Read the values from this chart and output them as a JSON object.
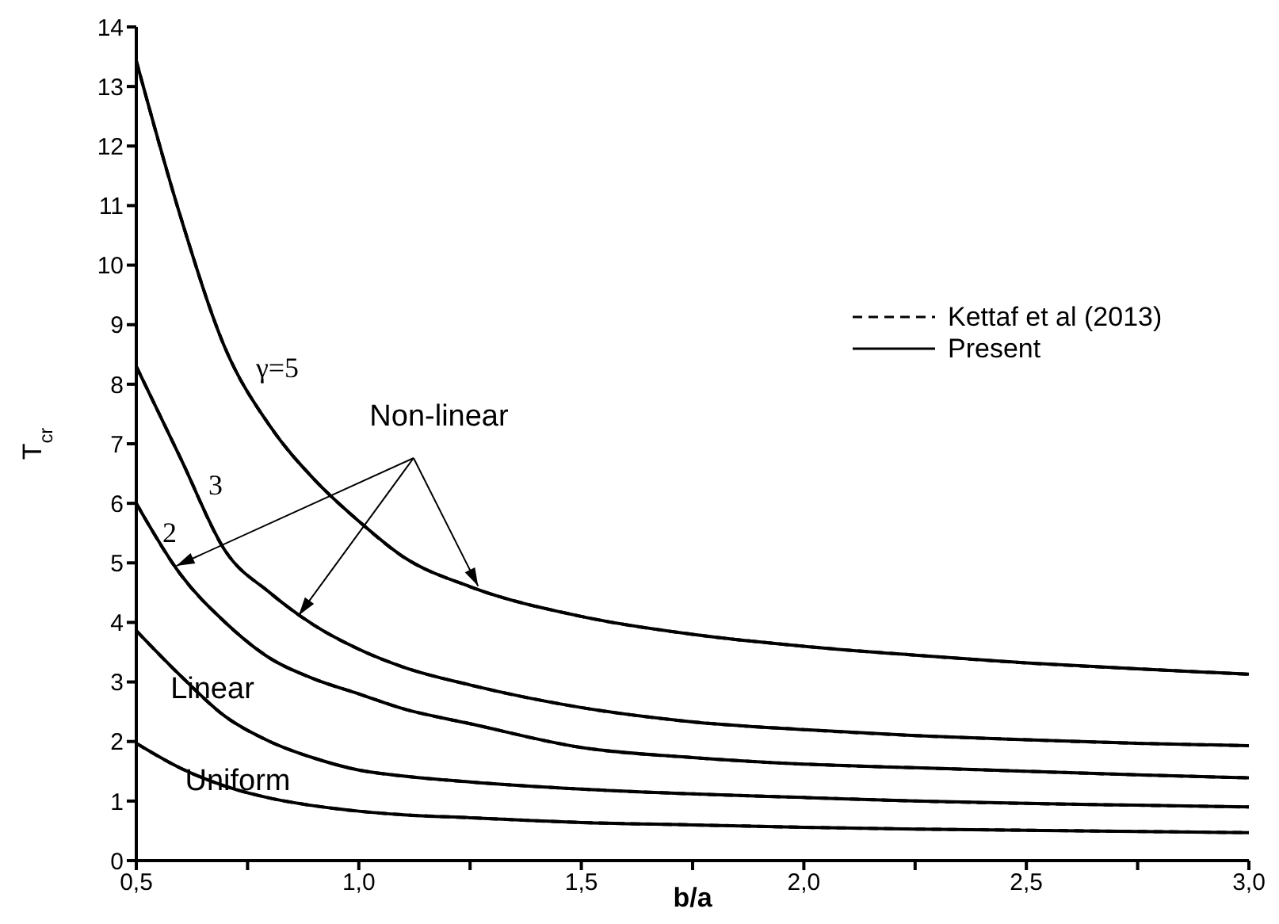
{
  "chart_data": {
    "type": "line",
    "xlabel": "b/a",
    "ylabel": "T$_{cr}$",
    "x": [
      0.5,
      0.6,
      0.7,
      0.8,
      0.9,
      1.0,
      1.1,
      1.25,
      1.5,
      1.75,
      2.0,
      2.25,
      2.5,
      2.75,
      3.0
    ],
    "series": [
      {
        "name": "Kettaf et al (2013)",
        "color": "#000000",
        "line_style": "dashed",
        "values": [
          13.43,
          10.8,
          8.6,
          7.3,
          6.4,
          5.7,
          5.1,
          4.6,
          4.1,
          3.8,
          3.6,
          3.45,
          3.32,
          3.22,
          3.13
        ]
      },
      {
        "color": "#000000",
        "line_style": "dashed",
        "values": [
          8.3,
          6.75,
          5.2,
          4.5,
          3.95,
          3.55,
          3.25,
          2.95,
          2.57,
          2.33,
          2.2,
          2.1,
          2.03,
          1.97,
          1.93
        ]
      },
      {
        "color": "#000000",
        "line_style": "dashed",
        "values": [
          6.0,
          4.8,
          4.0,
          3.4,
          3.05,
          2.8,
          2.55,
          2.3,
          1.9,
          1.73,
          1.62,
          1.56,
          1.5,
          1.44,
          1.39
        ]
      },
      {
        "color": "#000000",
        "line_style": "dashed",
        "values": [
          3.86,
          3.1,
          2.42,
          2.0,
          1.72,
          1.52,
          1.42,
          1.32,
          1.2,
          1.12,
          1.06,
          1.0,
          0.96,
          0.93,
          0.9
        ]
      },
      {
        "color": "#000000",
        "line_style": "dashed",
        "values": [
          1.97,
          1.55,
          1.25,
          1.05,
          0.92,
          0.83,
          0.77,
          0.72,
          0.64,
          0.6,
          0.56,
          0.53,
          0.51,
          0.49,
          0.47
        ]
      },
      {
        "name": "Present",
        "color": "#000000",
        "line_style": "solid",
        "values": [
          13.43,
          10.8,
          8.6,
          7.3,
          6.4,
          5.7,
          5.1,
          4.6,
          4.1,
          3.8,
          3.6,
          3.45,
          3.32,
          3.22,
          3.13
        ]
      },
      {
        "color": "#000000",
        "line_style": "solid",
        "values": [
          8.3,
          6.75,
          5.2,
          4.5,
          3.95,
          3.55,
          3.25,
          2.95,
          2.57,
          2.33,
          2.2,
          2.1,
          2.03,
          1.97,
          1.93
        ]
      },
      {
        "color": "#000000",
        "line_style": "solid",
        "values": [
          6.0,
          4.8,
          4.0,
          3.4,
          3.05,
          2.8,
          2.55,
          2.3,
          1.9,
          1.73,
          1.62,
          1.56,
          1.5,
          1.44,
          1.39
        ]
      },
      {
        "color": "#000000",
        "line_style": "solid",
        "values": [
          3.86,
          3.1,
          2.42,
          2.0,
          1.72,
          1.52,
          1.42,
          1.32,
          1.2,
          1.12,
          1.06,
          1.0,
          0.96,
          0.93,
          0.9
        ]
      },
      {
        "color": "#000000",
        "line_style": "solid",
        "values": [
          1.97,
          1.55,
          1.25,
          1.05,
          0.92,
          0.83,
          0.77,
          0.72,
          0.64,
          0.6,
          0.56,
          0.53,
          0.51,
          0.49,
          0.47
        ]
      }
    ],
    "xlim": [
      0.5,
      3.0
    ],
    "xticks": [
      {
        "value": 0.5,
        "label": "0,5"
      },
      {
        "value": 0.75,
        "label": null
      },
      {
        "value": 1.0,
        "label": "1,0"
      },
      {
        "value": 1.25,
        "label": null
      },
      {
        "value": 1.5,
        "label": "1,5"
      },
      {
        "value": 1.75,
        "label": null
      },
      {
        "value": 2.0,
        "label": "2,0"
      },
      {
        "value": 2.25,
        "label": null
      },
      {
        "value": 2.5,
        "label": "2,5"
      },
      {
        "value": 2.75,
        "label": null
      },
      {
        "value": 3.0,
        "label": "3,0"
      }
    ],
    "ylim": [
      0,
      14
    ],
    "yticks": [
      0,
      1,
      2,
      3,
      4,
      5,
      6,
      7,
      8,
      9,
      10,
      11,
      12,
      13,
      14
    ],
    "grid": false,
    "legend": "right",
    "marker": "none",
    "annotations": [
      "γ=5",
      "3",
      "2",
      {
        "text": "Non-linear",
        "x": 1.268,
        "y": 4.61
      },
      "Linear",
      "Uniform"
    ]
  }
}
